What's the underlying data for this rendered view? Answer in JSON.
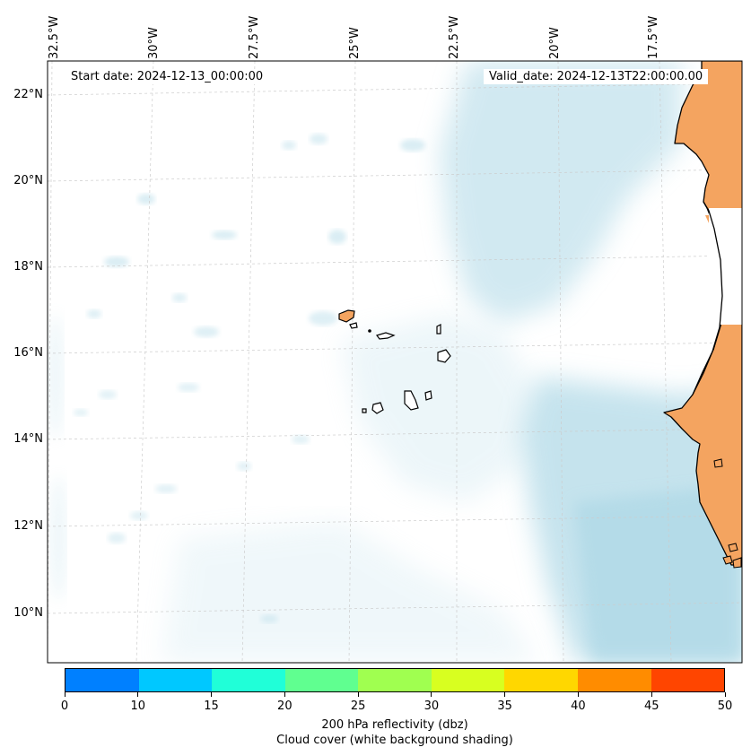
{
  "map": {
    "start_date": "Start date: 2024-12-13_00:00:00",
    "valid_date": "Valid_date: 2024-12-13T22:00:00.00",
    "lon_labels": [
      "32.5°W",
      "30°W",
      "27.5°W",
      "25°W",
      "22.5°W",
      "20°W",
      "17.5°W"
    ],
    "lat_labels": [
      "22°N",
      "20°N",
      "18°N",
      "16°N",
      "14°N",
      "12°N",
      "10°N"
    ],
    "land_color": "#f4a460",
    "cloud_color": "#add8e6",
    "grid": "dashed-light"
  },
  "colorbar": {
    "ticks": [
      "0",
      "10",
      "15",
      "20",
      "25",
      "30",
      "35",
      "40",
      "45",
      "50"
    ],
    "colors": [
      "#0080ff",
      "#00c8ff",
      "#20ffd8",
      "#60ff90",
      "#a0ff50",
      "#d8ff20",
      "#ffd700",
      "#ff8c00",
      "#ff4500"
    ],
    "title_line1": "200 hPa reflectivity (dbz)",
    "title_line2": "Cloud cover (white background shading)"
  }
}
